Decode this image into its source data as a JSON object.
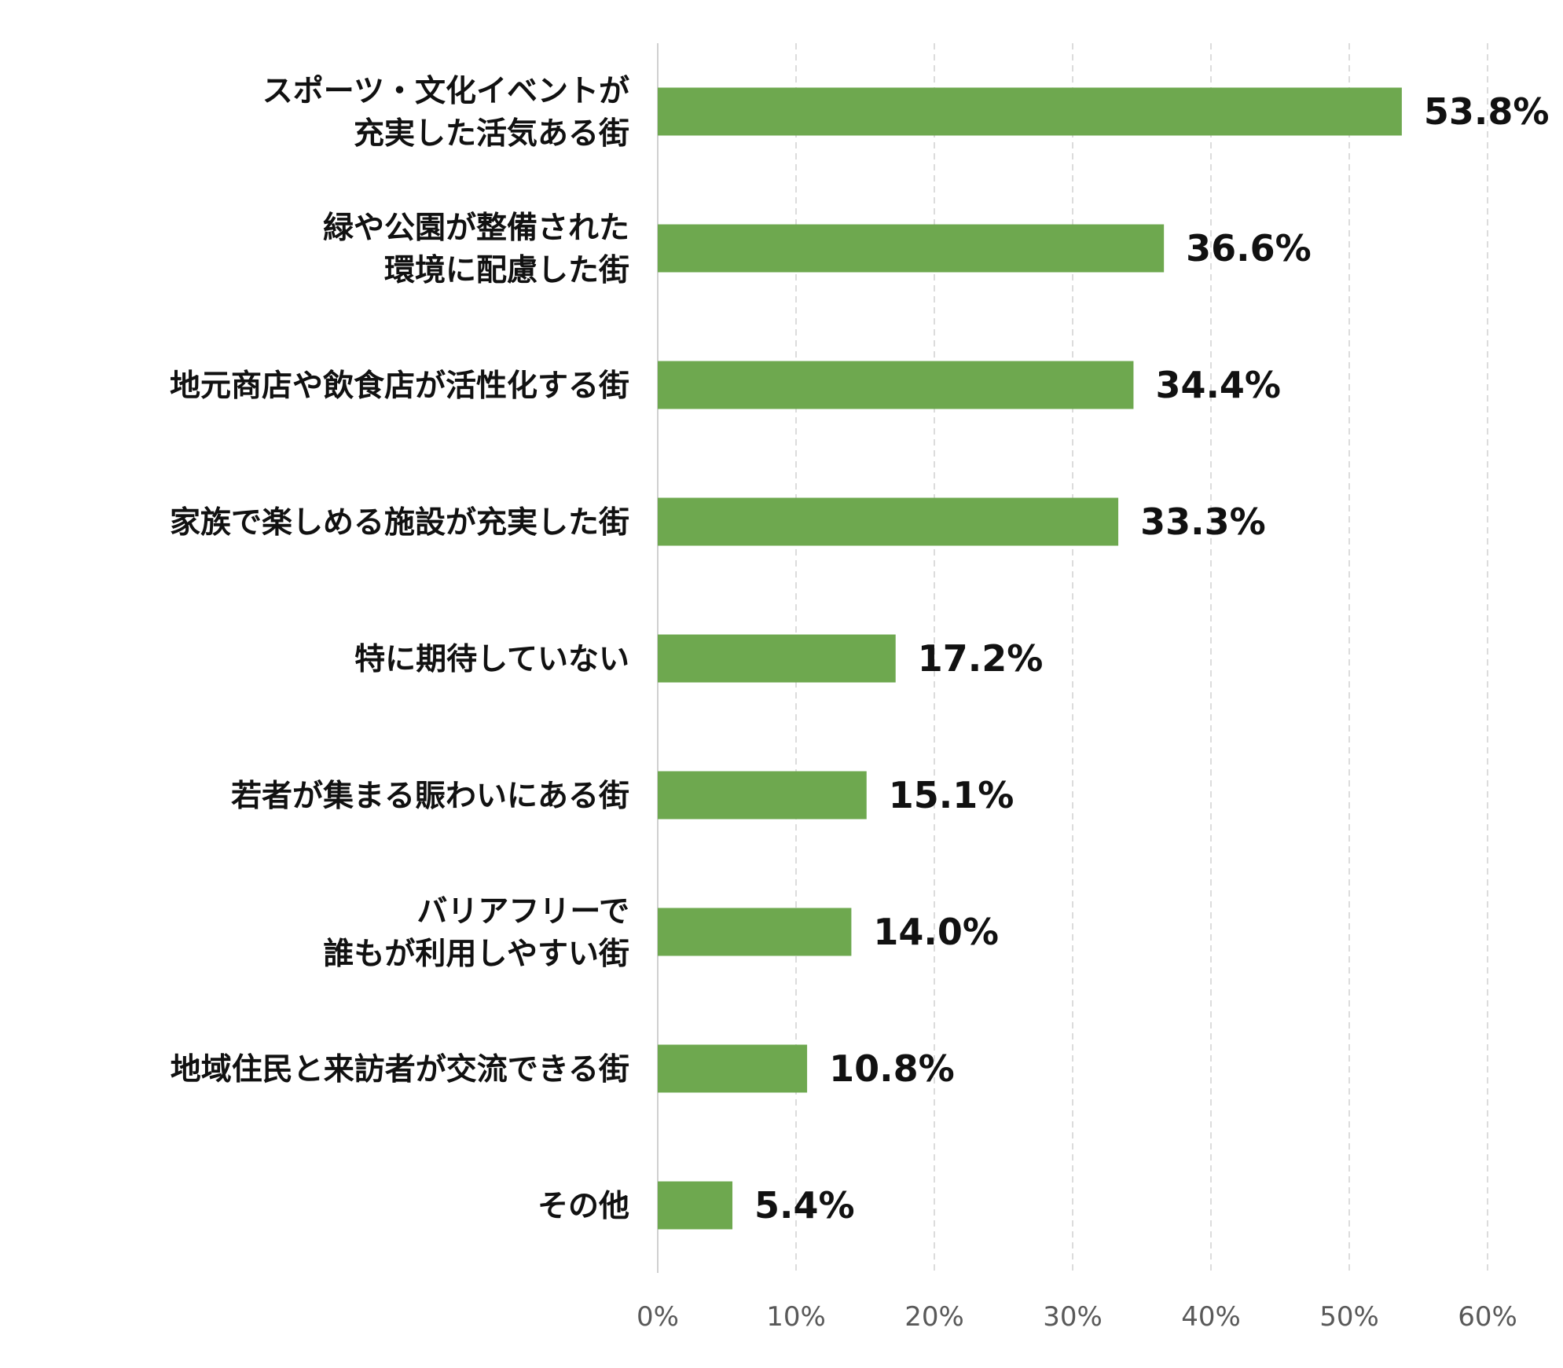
{
  "chart_data": {
    "type": "bar",
    "orientation": "horizontal",
    "categories": [
      [
        "スポーツ・文化イベントが",
        "充実した活気ある街"
      ],
      [
        "緑や公園が整備された",
        "環境に配慮した街"
      ],
      [
        "地元商店や飲食店が活性化する街"
      ],
      [
        "家族で楽しめる施設が充実した街"
      ],
      [
        "特に期待していない"
      ],
      [
        "若者が集まる賑わいにある街"
      ],
      [
        "バリアフリーで",
        "誰もが利用しやすい街"
      ],
      [
        "地域住民と来訪者が交流できる街"
      ],
      [
        "その他"
      ]
    ],
    "values": [
      53.8,
      36.6,
      34.4,
      33.3,
      17.2,
      15.1,
      14.0,
      10.8,
      5.4
    ],
    "value_labels": [
      "53.8%",
      "36.6%",
      "34.4%",
      "33.3%",
      "17.2%",
      "15.1%",
      "14.0%",
      "10.8%",
      "5.4%"
    ],
    "xlim": [
      0,
      60
    ],
    "xticks": [
      "0%",
      "10%",
      "20%",
      "30%",
      "40%",
      "50%",
      "60%"
    ],
    "grid": true,
    "bar_color": "#6ea84f",
    "title": "",
    "xlabel": "",
    "ylabel": ""
  }
}
